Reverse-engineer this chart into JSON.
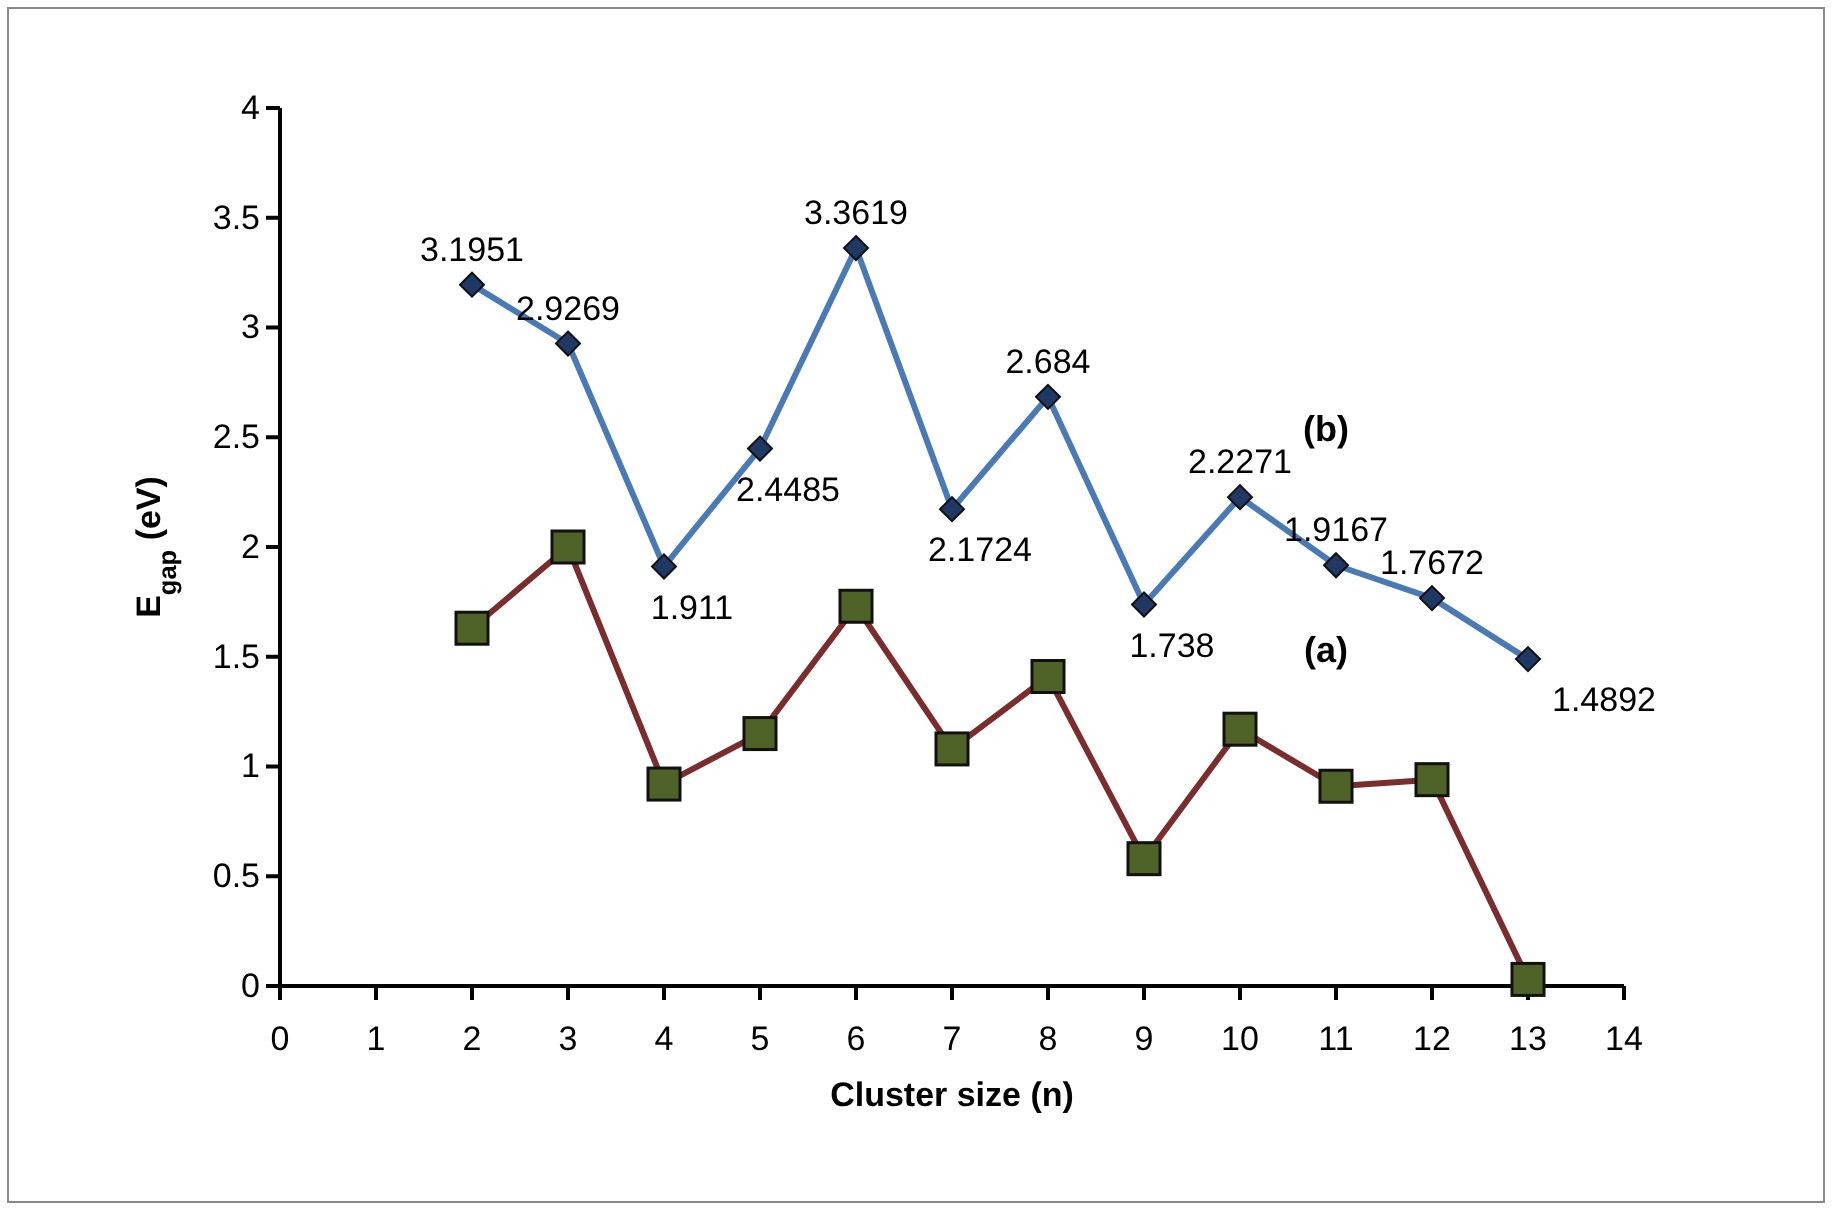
{
  "chart_data": {
    "type": "line",
    "xlabel": "Cluster size (n)",
    "ylabel": "E$_{gap}$ (eV)",
    "xlim": [
      0,
      14
    ],
    "xticks": [
      0,
      1,
      2,
      3,
      4,
      5,
      6,
      7,
      8,
      9,
      10,
      11,
      12,
      13,
      14
    ],
    "ylim": [
      0,
      4
    ],
    "yticks": [
      0,
      0.5,
      1,
      1.5,
      2,
      2.5,
      3,
      3.5,
      4
    ],
    "x": [
      2,
      3,
      4,
      5,
      6,
      7,
      8,
      9,
      10,
      11,
      12,
      13
    ],
    "series": [
      {
        "color": "#7b2c2c",
        "marker": "square",
        "values": [
          1.63,
          2.0,
          0.92,
          1.15,
          1.73,
          1.08,
          1.41,
          0.58,
          1.17,
          0.91,
          0.94,
          0.03
        ]
      },
      {
        "color": "#4a7ab5",
        "marker": "diamond",
        "data_labels": true,
        "values": [
          3.1951,
          2.9269,
          1.911,
          2.4485,
          3.3619,
          2.1724,
          2.684,
          1.738,
          2.2271,
          1.9167,
          1.7672,
          1.4892
        ]
      }
    ],
    "annotations": [
      "(a)",
      "(b)"
    ]
  }
}
